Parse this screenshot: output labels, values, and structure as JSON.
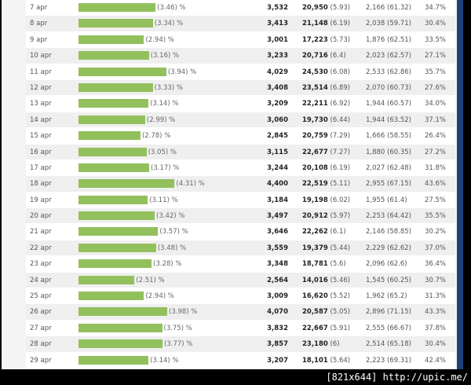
{
  "rows": [
    {
      "date": "7 apr",
      "share": 3.46,
      "share_label": "(3.46) %",
      "count": "3,532",
      "views": "20,950",
      "views_avg": "(5.93)",
      "third": "2,166 (61.32)",
      "rate": "34.7%"
    },
    {
      "date": "8 apr",
      "share": 3.34,
      "share_label": "(3.34) %",
      "count": "3,413",
      "views": "21,148",
      "views_avg": "(6.19)",
      "third": "2,038 (59.71)",
      "rate": "30.4%"
    },
    {
      "date": "9 apr",
      "share": 2.94,
      "share_label": "(2.94) %",
      "count": "3,001",
      "views": "17,223",
      "views_avg": "(5.73)",
      "third": "1,876 (62.51)",
      "rate": "33.5%"
    },
    {
      "date": "10 apr",
      "share": 3.16,
      "share_label": "(3.16) %",
      "count": "3,233",
      "views": "20,716",
      "views_avg": "(6.4)",
      "third": "2,023 (62.57)",
      "rate": "27.1%"
    },
    {
      "date": "11 apr",
      "share": 3.94,
      "share_label": "(3.94) %",
      "count": "4,029",
      "views": "24,530",
      "views_avg": "(6.08)",
      "third": "2,533 (62.86)",
      "rate": "35.7%"
    },
    {
      "date": "12 apr",
      "share": 3.33,
      "share_label": "(3.33) %",
      "count": "3,408",
      "views": "23,514",
      "views_avg": "(6.89)",
      "third": "2,070 (60.73)",
      "rate": "27.6%"
    },
    {
      "date": "13 apr",
      "share": 3.14,
      "share_label": "(3.14) %",
      "count": "3,209",
      "views": "22,211",
      "views_avg": "(6.92)",
      "third": "1,944 (60.57)",
      "rate": "34.0%"
    },
    {
      "date": "14 apr",
      "share": 2.99,
      "share_label": "(2.99) %",
      "count": "3,060",
      "views": "19,730",
      "views_avg": "(6.44)",
      "third": "1,944 (63.52)",
      "rate": "37.1%"
    },
    {
      "date": "15 apr",
      "share": 2.78,
      "share_label": "(2.78) %",
      "count": "2,845",
      "views": "20,759",
      "views_avg": "(7.29)",
      "third": "1,666 (58.55)",
      "rate": "26.4%"
    },
    {
      "date": "16 apr",
      "share": 3.05,
      "share_label": "(3.05) %",
      "count": "3,115",
      "views": "22,677",
      "views_avg": "(7.27)",
      "third": "1,880 (60.35)",
      "rate": "27.2%"
    },
    {
      "date": "17 apr",
      "share": 3.17,
      "share_label": "(3.17) %",
      "count": "3,244",
      "views": "20,108",
      "views_avg": "(6.19)",
      "third": "2,027 (62.48)",
      "rate": "31.8%"
    },
    {
      "date": "18 apr",
      "share": 4.31,
      "share_label": "(4.31) %",
      "count": "4,400",
      "views": "22,519",
      "views_avg": "(5.11)",
      "third": "2,955 (67.15)",
      "rate": "43.6%"
    },
    {
      "date": "19 apr",
      "share": 3.11,
      "share_label": "(3.11) %",
      "count": "3,184",
      "views": "19,198",
      "views_avg": "(6.02)",
      "third": "1,955 (61.4)",
      "rate": "27.5%"
    },
    {
      "date": "20 apr",
      "share": 3.42,
      "share_label": "(3.42) %",
      "count": "3,497",
      "views": "20,912",
      "views_avg": "(5.97)",
      "third": "2,253 (64.42)",
      "rate": "35.5%"
    },
    {
      "date": "21 apr",
      "share": 3.57,
      "share_label": "(3.57) %",
      "count": "3,646",
      "views": "22,262",
      "views_avg": "(6.1)",
      "third": "2,146 (58.85)",
      "rate": "30.2%"
    },
    {
      "date": "22 apr",
      "share": 3.48,
      "share_label": "(3.48) %",
      "count": "3,559",
      "views": "19,379",
      "views_avg": "(5.44)",
      "third": "2,229 (62.62)",
      "rate": "37.0%"
    },
    {
      "date": "23 apr",
      "share": 3.28,
      "share_label": "(3.28) %",
      "count": "3,348",
      "views": "18,781",
      "views_avg": "(5.6)",
      "third": "2,096 (62.6)",
      "rate": "36.4%"
    },
    {
      "date": "24 apr",
      "share": 2.51,
      "share_label": "(2.51) %",
      "count": "2,564",
      "views": "14,016",
      "views_avg": "(5.46)",
      "third": "1,545 (60.25)",
      "rate": "30.7%"
    },
    {
      "date": "25 apr",
      "share": 2.94,
      "share_label": "(2.94) %",
      "count": "3,009",
      "views": "16,620",
      "views_avg": "(5.52)",
      "third": "1,962 (65.2)",
      "rate": "31.3%"
    },
    {
      "date": "26 apr",
      "share": 3.98,
      "share_label": "(3.98) %",
      "count": "4,070",
      "views": "20,587",
      "views_avg": "(5.05)",
      "third": "2,896 (71.15)",
      "rate": "43.3%"
    },
    {
      "date": "27 apr",
      "share": 3.75,
      "share_label": "(3.75) %",
      "count": "3,832",
      "views": "22,667",
      "views_avg": "(5.91)",
      "third": "2,555 (66.67)",
      "rate": "37.8%"
    },
    {
      "date": "28 apr",
      "share": 3.77,
      "share_label": "(3.77) %",
      "count": "3,857",
      "views": "23,180",
      "views_avg": "(6)",
      "third": "2,514 (65.18)",
      "rate": "30.4%"
    },
    {
      "date": "29 apr",
      "share": 3.14,
      "share_label": "(3.14) %",
      "count": "3,207",
      "views": "18,101",
      "views_avg": "(5.64)",
      "third": "2,223 (69.31)",
      "rate": "42.4%"
    }
  ],
  "bar_color": "#92c05c",
  "credit": "[821x644] http://upic.me/"
}
